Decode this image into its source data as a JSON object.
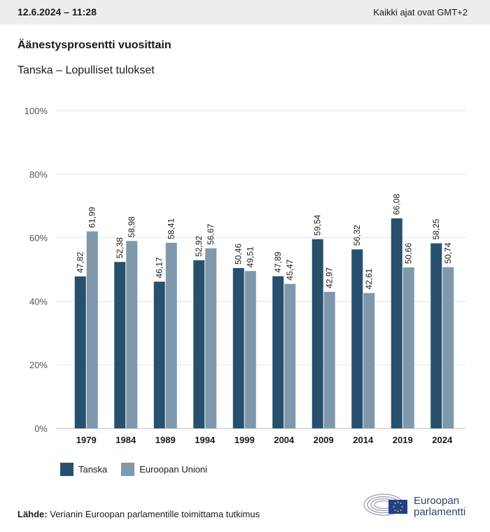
{
  "header": {
    "date_time": "12.6.2024 – 11:28",
    "timezone_note": "Kaikki ajat ovat GMT+2"
  },
  "title": "Äänestysprosentti vuosittain",
  "subtitle": "Tanska – Lopulliset tulokset",
  "colors": {
    "tanska": "#27506e",
    "eu": "#7f98ab",
    "grid": "#e3e3e3",
    "topbar": "#ededed"
  },
  "chart_data": {
    "type": "bar",
    "categories": [
      "1979",
      "1984",
      "1989",
      "1994",
      "1999",
      "2004",
      "2009",
      "2014",
      "2019",
      "2024"
    ],
    "series": [
      {
        "name": "Tanska",
        "values": [
          47.82,
          52.38,
          46.17,
          52.92,
          50.46,
          47.89,
          59.54,
          56.32,
          66.08,
          58.25
        ],
        "labels": [
          "47,82",
          "52,38",
          "46,17",
          "52,92",
          "50,46",
          "47,89",
          "59,54",
          "56,32",
          "66,08",
          "58,25"
        ]
      },
      {
        "name": "Euroopan Unioni",
        "values": [
          61.99,
          58.98,
          58.41,
          56.67,
          49.51,
          45.47,
          42.97,
          42.61,
          50.66,
          50.74
        ],
        "labels": [
          "61,99",
          "58,98",
          "58,41",
          "56,67",
          "49,51",
          "45,47",
          "42,97",
          "42,61",
          "50,66",
          "50,74"
        ]
      }
    ],
    "y_ticks": [
      "0%",
      "20%",
      "40%",
      "60%",
      "80%",
      "100%"
    ],
    "ylim": [
      0,
      100
    ],
    "grid": true,
    "legend_position": "bottom-left"
  },
  "legend": {
    "tanska": "Tanska",
    "eu": "Euroopan Unioni"
  },
  "source": {
    "label": "Lähde:",
    "text": "Verianin Euroopan parlamentille toimittama tutkimus"
  },
  "logo": {
    "line1": "Euroopan",
    "line2": "parlamentti"
  }
}
